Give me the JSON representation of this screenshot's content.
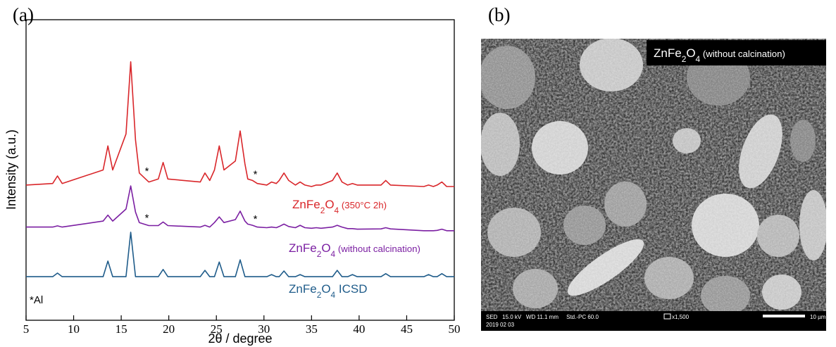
{
  "chart_data": {
    "type": "line",
    "panel_label": "(a)",
    "x_label": "2θ / degree",
    "y_label": "Intensity (a.u.)",
    "xlim": [
      5,
      50
    ],
    "xticks": [
      5,
      10,
      15,
      20,
      25,
      30,
      35,
      40,
      45,
      50
    ],
    "ylim": [
      0,
      100
    ],
    "x": [
      5,
      7.8,
      8.3,
      8.8,
      13.1,
      13.6,
      14.1,
      15.5,
      16,
      16.5,
      16.9,
      17.4,
      17.9,
      18.9,
      19.4,
      19.9,
      23.3,
      23.8,
      24.3,
      24.8,
      25.3,
      25.8,
      27,
      27.5,
      28,
      28.3,
      28.8,
      29.3,
      30.3,
      30.8,
      31.3,
      31.6,
      32.1,
      32.6,
      33.3,
      33.8,
      34.3,
      35,
      35.5,
      36,
      37.2,
      37.7,
      38.2,
      38.8,
      39.3,
      39.8,
      42.3,
      42.8,
      43.3,
      46.8,
      47.3,
      47.8,
      48.2,
      48.7,
      49.2,
      50
    ],
    "series": [
      {
        "name": "ZnFe2O4 (350°C 2h)",
        "color": "#d9262a",
        "values": [
          45,
          45.5,
          48,
          45.5,
          50,
          58,
          50,
          62,
          86,
          60,
          49,
          47.5,
          46,
          47,
          52.5,
          47,
          46,
          49,
          46.5,
          50,
          58,
          50,
          53,
          63,
          52,
          47,
          46.5,
          45.5,
          45,
          46,
          45.5,
          46.5,
          49,
          46.5,
          45,
          46,
          45,
          44.5,
          45,
          45,
          46.5,
          49,
          46,
          45,
          45.5,
          45,
          45,
          46.5,
          45,
          44.5,
          45,
          44.5,
          45,
          46,
          44.5,
          44.5
        ]
      },
      {
        "name": "ZnFe2O4 (without calcination)",
        "color": "#7b1fa2",
        "values": [
          31,
          31,
          31.4,
          31,
          33,
          35,
          33,
          37,
          44.7,
          36,
          32.5,
          32,
          31.5,
          31.5,
          32.7,
          31.5,
          31,
          31.6,
          31,
          32.5,
          34.4,
          32.5,
          33.5,
          36.3,
          33,
          32,
          31.6,
          31,
          30.8,
          31,
          30.8,
          31.2,
          32,
          31.2,
          30.8,
          31.6,
          30.8,
          30.6,
          30.8,
          30.6,
          31,
          31.6,
          31,
          30.5,
          30.5,
          30.3,
          30.4,
          30.8,
          30.4,
          29.8,
          29.8,
          29.8,
          29.9,
          30.3,
          29.8,
          29.8
        ]
      },
      {
        "name": "ZnFe2O4 ICSD",
        "color": "#1f5c8a",
        "values": [
          14.5,
          14.5,
          15.7,
          14.5,
          14.5,
          19.7,
          14.5,
          14.5,
          29.3,
          14.5,
          14.5,
          14.5,
          14.5,
          14.5,
          16.9,
          14.5,
          14.5,
          16.6,
          14.5,
          14.5,
          19.4,
          14.5,
          14.5,
          20.1,
          14.5,
          14.5,
          14.5,
          14.5,
          14.5,
          15.2,
          14.5,
          14.5,
          16.4,
          14.5,
          14.5,
          15.2,
          14.5,
          14.5,
          14.5,
          14.5,
          14.5,
          16.6,
          14.5,
          14.5,
          15.2,
          14.5,
          14.5,
          15.5,
          14.5,
          14.5,
          15.2,
          14.5,
          14.5,
          15.5,
          14.5,
          14.5
        ]
      }
    ],
    "annotations": [
      {
        "text": "*",
        "x": 17.4
      },
      {
        "text": "*",
        "x": 28.8
      },
      {
        "text": "*",
        "x": 17.4
      },
      {
        "text": "*",
        "x": 28.8
      }
    ],
    "note": "*Al"
  },
  "sem_image": {
    "panel_label": "(b)",
    "label": "ZnFe2O4 (without calcination)",
    "info": "SED   15.0 kV   WD 11.1 mm     Std.-PC 60.0",
    "date": "2019 02 03",
    "magnification": "x1,500",
    "scale_bar": "10 µm"
  }
}
